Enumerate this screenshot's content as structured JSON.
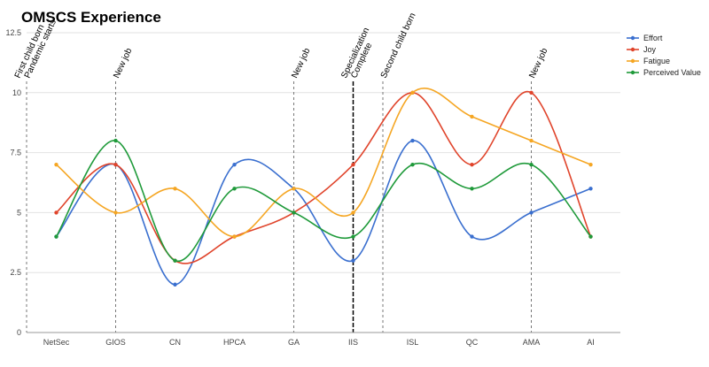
{
  "chart_data": {
    "type": "line",
    "title": "OMSCS Experience",
    "categories": [
      "NetSec",
      "GIOS",
      "CN",
      "HPCA",
      "GA",
      "IIS",
      "ISL",
      "QC",
      "AMA",
      "AI"
    ],
    "y_ticks": [
      "0",
      "2.5",
      "5",
      "7.5",
      "10",
      "12.5"
    ],
    "ylim": [
      0,
      12.5
    ],
    "grid": "horizontal",
    "legend_position": "top-right",
    "series": [
      {
        "name": "Effort",
        "color": "#3a6fcf",
        "values": [
          4,
          7,
          2,
          7,
          6,
          3,
          8,
          4,
          5,
          6
        ]
      },
      {
        "name": "Joy",
        "color": "#e0442b",
        "values": [
          5,
          7,
          3,
          4,
          5,
          7,
          10,
          7,
          10,
          4
        ]
      },
      {
        "name": "Fatigue",
        "color": "#f5a623",
        "values": [
          7,
          5,
          6,
          4,
          6,
          5,
          10,
          9,
          8,
          7
        ]
      },
      {
        "name": "Perceived Value",
        "color": "#1f9a3a",
        "values": [
          4,
          8,
          3,
          6,
          5,
          4,
          7,
          6,
          7,
          4
        ]
      }
    ],
    "annotations": [
      {
        "x_index": -0.5,
        "lines": [
          "First child born",
          "Pandemic starts"
        ],
        "style": "dashed"
      },
      {
        "x_index": 1,
        "lines": [
          "New job"
        ],
        "style": "dashed"
      },
      {
        "x_index": 4,
        "lines": [
          "New job"
        ],
        "style": "dashed"
      },
      {
        "x_index": 5,
        "lines": [
          "Specialization",
          "Complete"
        ],
        "style": "solid-dashed"
      },
      {
        "x_index": 5.5,
        "lines": [
          "Second child born"
        ],
        "style": "dashed"
      },
      {
        "x_index": 8,
        "lines": [
          "New job"
        ],
        "style": "dashed"
      }
    ]
  }
}
